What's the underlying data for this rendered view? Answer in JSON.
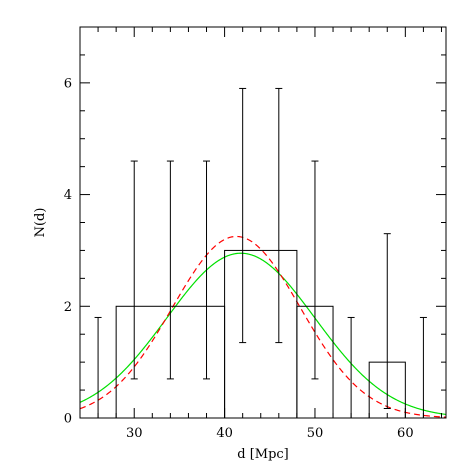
{
  "chart_data": {
    "type": "histogram",
    "xlabel": "d [Mpc]",
    "ylabel": "N(d)",
    "xlim": [
      24,
      64.5
    ],
    "ylim": [
      0,
      7
    ],
    "x_ticks": [
      {
        "value": 30,
        "label": "30"
      },
      {
        "value": 40,
        "label": "40"
      },
      {
        "value": 50,
        "label": "50"
      },
      {
        "value": 60,
        "label": "60"
      }
    ],
    "y_ticks": [
      {
        "value": 0,
        "label": "0"
      },
      {
        "value": 2,
        "label": "2"
      },
      {
        "value": 4,
        "label": "4"
      },
      {
        "value": 6,
        "label": "6"
      }
    ],
    "x_minor_step": 2,
    "y_minor_step": 0.5,
    "histogram": {
      "color": "#000000",
      "bins": [
        {
          "x0": 28,
          "x1": 40,
          "count": 2
        },
        {
          "x0": 40,
          "x1": 48,
          "count": 3
        },
        {
          "x0": 48,
          "x1": 52,
          "count": 2
        },
        {
          "x0": 56,
          "x1": 60,
          "count": 1
        }
      ]
    },
    "error_bars": [
      {
        "x": 26,
        "low": 0,
        "high": 1.8
      },
      {
        "x": 30,
        "low": 0.7,
        "high": 4.6
      },
      {
        "x": 34,
        "low": 0.7,
        "high": 4.6
      },
      {
        "x": 38,
        "low": 0.7,
        "high": 4.6
      },
      {
        "x": 42,
        "low": 1.35,
        "high": 5.9
      },
      {
        "x": 46,
        "low": 1.35,
        "high": 5.9
      },
      {
        "x": 50,
        "low": 0.7,
        "high": 4.6
      },
      {
        "x": 54,
        "low": 0,
        "high": 1.8
      },
      {
        "x": 58,
        "low": 0.17,
        "high": 3.3
      },
      {
        "x": 62,
        "low": 0,
        "high": 1.8
      }
    ],
    "curves": [
      {
        "style": "solid",
        "color": "#00e000",
        "mu": 41.8,
        "sigma": 8.2,
        "amplitude": 2.95
      },
      {
        "style": "dashed",
        "color": "#ff0000",
        "mu": 41.3,
        "sigma": 7.1,
        "amplitude": 3.25
      }
    ]
  }
}
